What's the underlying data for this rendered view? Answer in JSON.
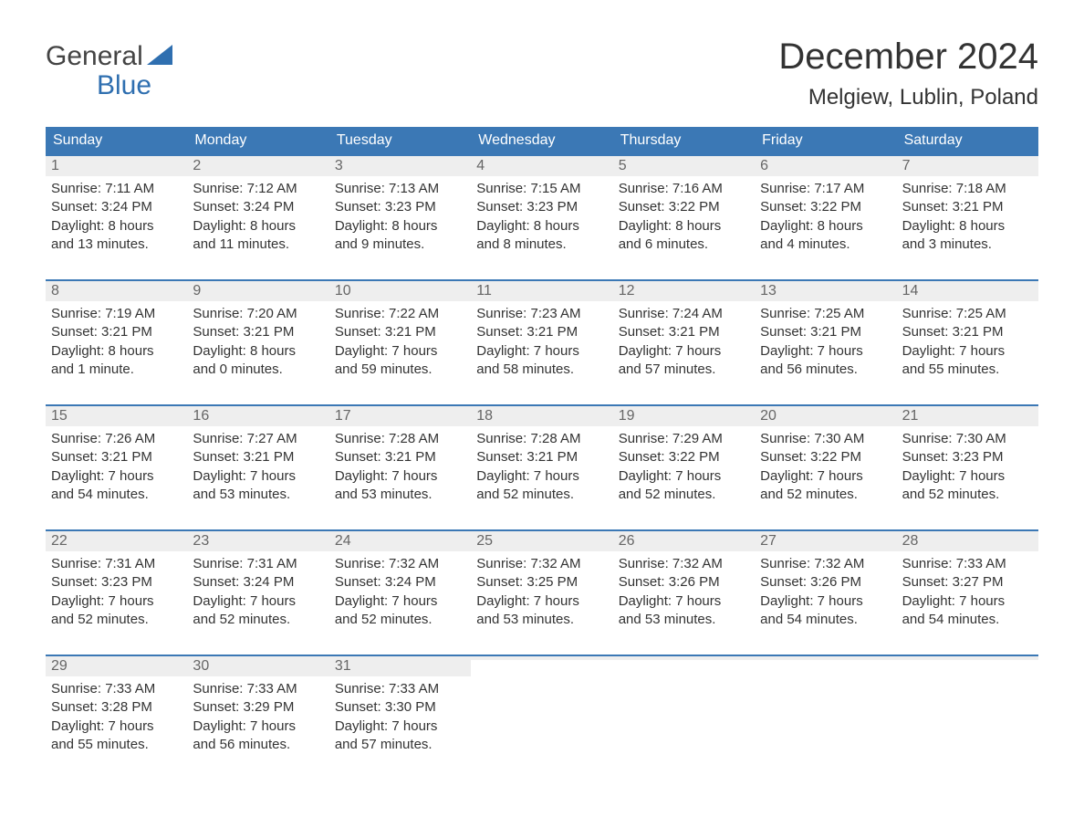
{
  "brand": {
    "word1": "General",
    "word2": "Blue",
    "sail_color": "#2f6fb0",
    "text_dark": "#444444"
  },
  "title": "December 2024",
  "location": "Melgiew, Lublin, Poland",
  "colors": {
    "header_bg": "#3b78b5",
    "header_text": "#ffffff",
    "daynum_bg": "#eeeeee",
    "daynum_text": "#666666",
    "body_text": "#333333",
    "rule": "#3b78b5",
    "page_bg": "#ffffff"
  },
  "weekdays": [
    "Sunday",
    "Monday",
    "Tuesday",
    "Wednesday",
    "Thursday",
    "Friday",
    "Saturday"
  ],
  "weeks": [
    [
      {
        "n": "1",
        "sunrise": "Sunrise: 7:11 AM",
        "sunset": "Sunset: 3:24 PM",
        "d1": "Daylight: 8 hours",
        "d2": "and 13 minutes."
      },
      {
        "n": "2",
        "sunrise": "Sunrise: 7:12 AM",
        "sunset": "Sunset: 3:24 PM",
        "d1": "Daylight: 8 hours",
        "d2": "and 11 minutes."
      },
      {
        "n": "3",
        "sunrise": "Sunrise: 7:13 AM",
        "sunset": "Sunset: 3:23 PM",
        "d1": "Daylight: 8 hours",
        "d2": "and 9 minutes."
      },
      {
        "n": "4",
        "sunrise": "Sunrise: 7:15 AM",
        "sunset": "Sunset: 3:23 PM",
        "d1": "Daylight: 8 hours",
        "d2": "and 8 minutes."
      },
      {
        "n": "5",
        "sunrise": "Sunrise: 7:16 AM",
        "sunset": "Sunset: 3:22 PM",
        "d1": "Daylight: 8 hours",
        "d2": "and 6 minutes."
      },
      {
        "n": "6",
        "sunrise": "Sunrise: 7:17 AM",
        "sunset": "Sunset: 3:22 PM",
        "d1": "Daylight: 8 hours",
        "d2": "and 4 minutes."
      },
      {
        "n": "7",
        "sunrise": "Sunrise: 7:18 AM",
        "sunset": "Sunset: 3:21 PM",
        "d1": "Daylight: 8 hours",
        "d2": "and 3 minutes."
      }
    ],
    [
      {
        "n": "8",
        "sunrise": "Sunrise: 7:19 AM",
        "sunset": "Sunset: 3:21 PM",
        "d1": "Daylight: 8 hours",
        "d2": "and 1 minute."
      },
      {
        "n": "9",
        "sunrise": "Sunrise: 7:20 AM",
        "sunset": "Sunset: 3:21 PM",
        "d1": "Daylight: 8 hours",
        "d2": "and 0 minutes."
      },
      {
        "n": "10",
        "sunrise": "Sunrise: 7:22 AM",
        "sunset": "Sunset: 3:21 PM",
        "d1": "Daylight: 7 hours",
        "d2": "and 59 minutes."
      },
      {
        "n": "11",
        "sunrise": "Sunrise: 7:23 AM",
        "sunset": "Sunset: 3:21 PM",
        "d1": "Daylight: 7 hours",
        "d2": "and 58 minutes."
      },
      {
        "n": "12",
        "sunrise": "Sunrise: 7:24 AM",
        "sunset": "Sunset: 3:21 PM",
        "d1": "Daylight: 7 hours",
        "d2": "and 57 minutes."
      },
      {
        "n": "13",
        "sunrise": "Sunrise: 7:25 AM",
        "sunset": "Sunset: 3:21 PM",
        "d1": "Daylight: 7 hours",
        "d2": "and 56 minutes."
      },
      {
        "n": "14",
        "sunrise": "Sunrise: 7:25 AM",
        "sunset": "Sunset: 3:21 PM",
        "d1": "Daylight: 7 hours",
        "d2": "and 55 minutes."
      }
    ],
    [
      {
        "n": "15",
        "sunrise": "Sunrise: 7:26 AM",
        "sunset": "Sunset: 3:21 PM",
        "d1": "Daylight: 7 hours",
        "d2": "and 54 minutes."
      },
      {
        "n": "16",
        "sunrise": "Sunrise: 7:27 AM",
        "sunset": "Sunset: 3:21 PM",
        "d1": "Daylight: 7 hours",
        "d2": "and 53 minutes."
      },
      {
        "n": "17",
        "sunrise": "Sunrise: 7:28 AM",
        "sunset": "Sunset: 3:21 PM",
        "d1": "Daylight: 7 hours",
        "d2": "and 53 minutes."
      },
      {
        "n": "18",
        "sunrise": "Sunrise: 7:28 AM",
        "sunset": "Sunset: 3:21 PM",
        "d1": "Daylight: 7 hours",
        "d2": "and 52 minutes."
      },
      {
        "n": "19",
        "sunrise": "Sunrise: 7:29 AM",
        "sunset": "Sunset: 3:22 PM",
        "d1": "Daylight: 7 hours",
        "d2": "and 52 minutes."
      },
      {
        "n": "20",
        "sunrise": "Sunrise: 7:30 AM",
        "sunset": "Sunset: 3:22 PM",
        "d1": "Daylight: 7 hours",
        "d2": "and 52 minutes."
      },
      {
        "n": "21",
        "sunrise": "Sunrise: 7:30 AM",
        "sunset": "Sunset: 3:23 PM",
        "d1": "Daylight: 7 hours",
        "d2": "and 52 minutes."
      }
    ],
    [
      {
        "n": "22",
        "sunrise": "Sunrise: 7:31 AM",
        "sunset": "Sunset: 3:23 PM",
        "d1": "Daylight: 7 hours",
        "d2": "and 52 minutes."
      },
      {
        "n": "23",
        "sunrise": "Sunrise: 7:31 AM",
        "sunset": "Sunset: 3:24 PM",
        "d1": "Daylight: 7 hours",
        "d2": "and 52 minutes."
      },
      {
        "n": "24",
        "sunrise": "Sunrise: 7:32 AM",
        "sunset": "Sunset: 3:24 PM",
        "d1": "Daylight: 7 hours",
        "d2": "and 52 minutes."
      },
      {
        "n": "25",
        "sunrise": "Sunrise: 7:32 AM",
        "sunset": "Sunset: 3:25 PM",
        "d1": "Daylight: 7 hours",
        "d2": "and 53 minutes."
      },
      {
        "n": "26",
        "sunrise": "Sunrise: 7:32 AM",
        "sunset": "Sunset: 3:26 PM",
        "d1": "Daylight: 7 hours",
        "d2": "and 53 minutes."
      },
      {
        "n": "27",
        "sunrise": "Sunrise: 7:32 AM",
        "sunset": "Sunset: 3:26 PM",
        "d1": "Daylight: 7 hours",
        "d2": "and 54 minutes."
      },
      {
        "n": "28",
        "sunrise": "Sunrise: 7:33 AM",
        "sunset": "Sunset: 3:27 PM",
        "d1": "Daylight: 7 hours",
        "d2": "and 54 minutes."
      }
    ],
    [
      {
        "n": "29",
        "sunrise": "Sunrise: 7:33 AM",
        "sunset": "Sunset: 3:28 PM",
        "d1": "Daylight: 7 hours",
        "d2": "and 55 minutes."
      },
      {
        "n": "30",
        "sunrise": "Sunrise: 7:33 AM",
        "sunset": "Sunset: 3:29 PM",
        "d1": "Daylight: 7 hours",
        "d2": "and 56 minutes."
      },
      {
        "n": "31",
        "sunrise": "Sunrise: 7:33 AM",
        "sunset": "Sunset: 3:30 PM",
        "d1": "Daylight: 7 hours",
        "d2": "and 57 minutes."
      },
      {
        "empty": true
      },
      {
        "empty": true
      },
      {
        "empty": true
      },
      {
        "empty": true
      }
    ]
  ]
}
